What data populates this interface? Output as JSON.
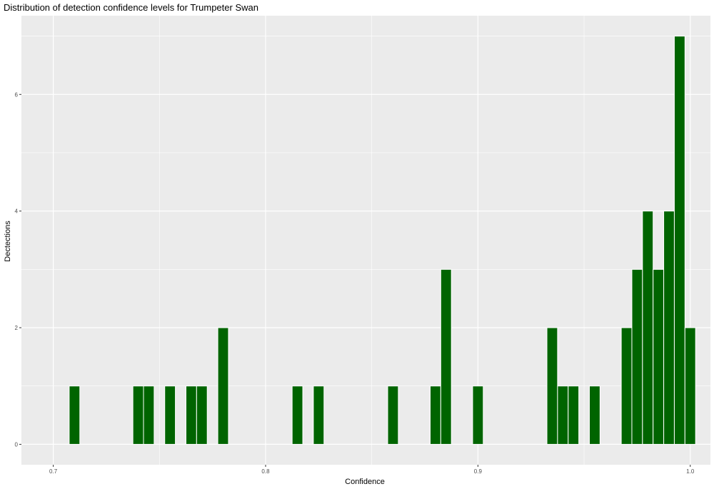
{
  "chart_data": {
    "type": "bar",
    "title": "Distribution of detection confidence levels for Trumpeter Swan",
    "xlabel": "Confidence",
    "ylabel": "Dectections",
    "xlim": [
      0.685,
      1.0095
    ],
    "ylim": [
      -0.35,
      7.35
    ],
    "x_ticks": [
      0.7,
      0.8,
      0.9,
      1.0
    ],
    "x_tick_labels": [
      "0.7",
      "0.8",
      "0.9",
      "1.0"
    ],
    "y_ticks": [
      0,
      2,
      4,
      6
    ],
    "y_tick_labels": [
      "0",
      "2",
      "4",
      "6"
    ],
    "bin_width": 0.005,
    "grid": true,
    "colors": {
      "bar_fill": "#006400",
      "bar_outline": "#ffffff",
      "panel": "#ebebeb",
      "grid": "#ffffff"
    },
    "bins": [
      {
        "x": 0.71,
        "count": 1
      },
      {
        "x": 0.74,
        "count": 1
      },
      {
        "x": 0.745,
        "count": 1
      },
      {
        "x": 0.755,
        "count": 1
      },
      {
        "x": 0.765,
        "count": 1
      },
      {
        "x": 0.77,
        "count": 1
      },
      {
        "x": 0.78,
        "count": 2
      },
      {
        "x": 0.815,
        "count": 1
      },
      {
        "x": 0.825,
        "count": 1
      },
      {
        "x": 0.86,
        "count": 1
      },
      {
        "x": 0.88,
        "count": 1
      },
      {
        "x": 0.885,
        "count": 3
      },
      {
        "x": 0.9,
        "count": 1
      },
      {
        "x": 0.935,
        "count": 2
      },
      {
        "x": 0.94,
        "count": 1
      },
      {
        "x": 0.945,
        "count": 1
      },
      {
        "x": 0.955,
        "count": 1
      },
      {
        "x": 0.97,
        "count": 2
      },
      {
        "x": 0.975,
        "count": 3
      },
      {
        "x": 0.98,
        "count": 4
      },
      {
        "x": 0.985,
        "count": 3
      },
      {
        "x": 0.99,
        "count": 4
      },
      {
        "x": 0.995,
        "count": 7
      },
      {
        "x": 1.0,
        "count": 2
      }
    ]
  }
}
